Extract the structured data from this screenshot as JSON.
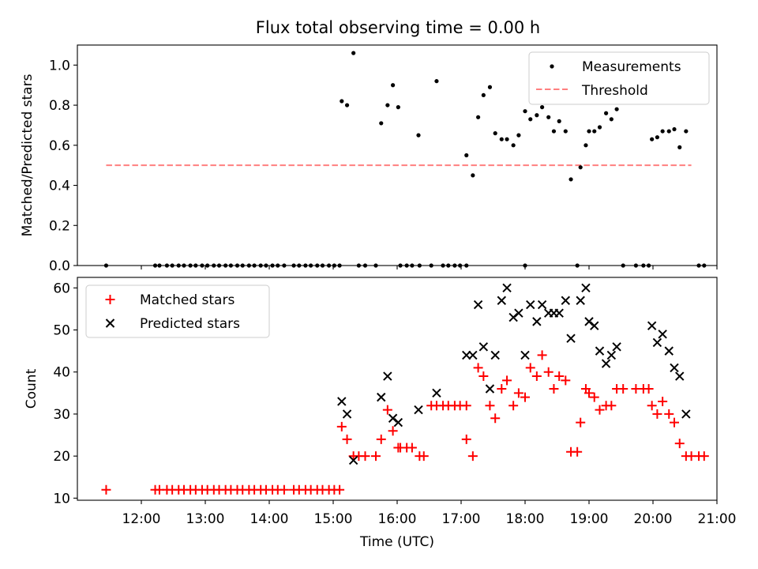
{
  "figure": {
    "title": "Flux total observing time = 0.00 h"
  },
  "chart_data": [
    {
      "type": "scatter",
      "title": "Flux total observing time = 0.00 h",
      "ylabel": "Matched/Predicted stars",
      "xlabel": "",
      "xlim": [
        "11:00",
        "21:00"
      ],
      "ylim": [
        0,
        1.1
      ],
      "yticks": [
        0.0,
        0.2,
        0.4,
        0.6,
        0.8,
        1.0
      ],
      "ytick_labels": [
        "0.0",
        "0.2",
        "0.4",
        "0.6",
        "0.8",
        "1.0"
      ],
      "grid": false,
      "legend": "upper right",
      "series": [
        {
          "name": "Measurements",
          "marker": "dot",
          "color": "#000000",
          "points": [
            [
              "11:27",
              0.0
            ],
            [
              "12:13",
              0.0
            ],
            [
              "12:17",
              0.0
            ],
            [
              "12:24",
              0.0
            ],
            [
              "12:29",
              0.0
            ],
            [
              "12:35",
              0.0
            ],
            [
              "12:40",
              0.0
            ],
            [
              "12:46",
              0.0
            ],
            [
              "12:51",
              0.0
            ],
            [
              "12:57",
              0.0
            ],
            [
              "13:02",
              0.0
            ],
            [
              "13:08",
              0.0
            ],
            [
              "13:13",
              0.0
            ],
            [
              "13:19",
              0.0
            ],
            [
              "13:24",
              0.0
            ],
            [
              "13:30",
              0.0
            ],
            [
              "13:35",
              0.0
            ],
            [
              "13:41",
              0.0
            ],
            [
              "13:46",
              0.0
            ],
            [
              "13:52",
              0.0
            ],
            [
              "13:57",
              0.0
            ],
            [
              "14:03",
              0.0
            ],
            [
              "14:08",
              0.0
            ],
            [
              "14:14",
              0.0
            ],
            [
              "14:23",
              0.0
            ],
            [
              "14:28",
              0.0
            ],
            [
              "14:34",
              0.0
            ],
            [
              "14:39",
              0.0
            ],
            [
              "14:45",
              0.0
            ],
            [
              "14:50",
              0.0
            ],
            [
              "14:56",
              0.0
            ],
            [
              "15:01",
              0.0
            ],
            [
              "15:06",
              0.0
            ],
            [
              "15:08",
              0.82
            ],
            [
              "15:13",
              0.8
            ],
            [
              "15:19",
              1.06
            ],
            [
              "15:24",
              0.0
            ],
            [
              "15:30",
              0.0
            ],
            [
              "15:40",
              0.0
            ],
            [
              "15:45",
              0.71
            ],
            [
              "15:51",
              0.8
            ],
            [
              "15:56",
              0.9
            ],
            [
              "16:01",
              0.79
            ],
            [
              "16:03",
              0.0
            ],
            [
              "16:09",
              0.0
            ],
            [
              "16:14",
              0.0
            ],
            [
              "16:21",
              0.0
            ],
            [
              "16:20",
              0.65
            ],
            [
              "16:32",
              0.0
            ],
            [
              "16:37",
              0.92
            ],
            [
              "16:43",
              0.0
            ],
            [
              "16:48",
              0.0
            ],
            [
              "16:54",
              0.0
            ],
            [
              "16:59",
              0.0
            ],
            [
              "17:05",
              0.0
            ],
            [
              "17:05",
              0.55
            ],
            [
              "17:11",
              0.45
            ],
            [
              "17:16",
              0.74
            ],
            [
              "17:21",
              0.85
            ],
            [
              "17:27",
              0.89
            ],
            [
              "17:32",
              0.66
            ],
            [
              "17:38",
              0.63
            ],
            [
              "17:43",
              0.63
            ],
            [
              "17:49",
              0.6
            ],
            [
              "17:54",
              0.65
            ],
            [
              "18:00",
              0.0
            ],
            [
              "18:00",
              0.77
            ],
            [
              "18:05",
              0.73
            ],
            [
              "18:11",
              0.75
            ],
            [
              "18:16",
              0.79
            ],
            [
              "18:22",
              0.74
            ],
            [
              "18:27",
              0.67
            ],
            [
              "18:32",
              0.72
            ],
            [
              "18:38",
              0.67
            ],
            [
              "18:43",
              0.43
            ],
            [
              "18:49",
              0.0
            ],
            [
              "18:52",
              0.49
            ],
            [
              "18:57",
              0.6
            ],
            [
              "19:00",
              0.67
            ],
            [
              "19:05",
              0.67
            ],
            [
              "19:10",
              0.69
            ],
            [
              "19:16",
              0.76
            ],
            [
              "19:21",
              0.73
            ],
            [
              "19:26",
              0.78
            ],
            [
              "19:32",
              0.0
            ],
            [
              "19:44",
              0.0
            ],
            [
              "19:51",
              0.0
            ],
            [
              "19:56",
              0.0
            ],
            [
              "19:59",
              0.63
            ],
            [
              "20:04",
              0.64
            ],
            [
              "20:09",
              0.67
            ],
            [
              "20:15",
              0.67
            ],
            [
              "20:20",
              0.68
            ],
            [
              "20:25",
              0.59
            ],
            [
              "20:31",
              0.67
            ],
            [
              "20:43",
              0.0
            ],
            [
              "20:48",
              0.0
            ]
          ]
        },
        {
          "name": "Threshold",
          "line": "dashed",
          "color": "#ff7f7f",
          "points": [
            [
              "11:27",
              0.5
            ],
            [
              "20:36",
              0.5
            ]
          ]
        }
      ]
    },
    {
      "type": "scatter",
      "xlabel": "Time (UTC)",
      "ylabel": "Count",
      "xlim": [
        "11:00",
        "21:00"
      ],
      "xticks": [
        "12:00",
        "13:00",
        "14:00",
        "15:00",
        "16:00",
        "17:00",
        "18:00",
        "19:00",
        "20:00",
        "21:00"
      ],
      "ylim": [
        9.5,
        62.5
      ],
      "yticks": [
        10,
        20,
        30,
        40,
        50,
        60
      ],
      "ytick_labels": [
        "10",
        "20",
        "30",
        "40",
        "50",
        "60"
      ],
      "grid": false,
      "legend": "upper left",
      "series": [
        {
          "name": "Matched stars",
          "marker": "plus",
          "color": "#ff0000",
          "points": [
            [
              "11:27",
              12
            ],
            [
              "12:13",
              12
            ],
            [
              "12:17",
              12
            ],
            [
              "12:24",
              12
            ],
            [
              "12:29",
              12
            ],
            [
              "12:35",
              12
            ],
            [
              "12:40",
              12
            ],
            [
              "12:46",
              12
            ],
            [
              "12:51",
              12
            ],
            [
              "12:57",
              12
            ],
            [
              "13:02",
              12
            ],
            [
              "13:08",
              12
            ],
            [
              "13:13",
              12
            ],
            [
              "13:19",
              12
            ],
            [
              "13:24",
              12
            ],
            [
              "13:30",
              12
            ],
            [
              "13:35",
              12
            ],
            [
              "13:41",
              12
            ],
            [
              "13:46",
              12
            ],
            [
              "13:52",
              12
            ],
            [
              "13:57",
              12
            ],
            [
              "14:03",
              12
            ],
            [
              "14:08",
              12
            ],
            [
              "14:14",
              12
            ],
            [
              "14:23",
              12
            ],
            [
              "14:28",
              12
            ],
            [
              "14:34",
              12
            ],
            [
              "14:39",
              12
            ],
            [
              "14:45",
              12
            ],
            [
              "14:50",
              12
            ],
            [
              "14:56",
              12
            ],
            [
              "15:01",
              12
            ],
            [
              "15:06",
              12
            ],
            [
              "15:08",
              27
            ],
            [
              "15:13",
              24
            ],
            [
              "15:19",
              20
            ],
            [
              "15:24",
              20
            ],
            [
              "15:30",
              20
            ],
            [
              "15:40",
              20
            ],
            [
              "15:45",
              24
            ],
            [
              "15:51",
              31
            ],
            [
              "15:56",
              26
            ],
            [
              "16:01",
              22
            ],
            [
              "16:03",
              22
            ],
            [
              "16:09",
              22
            ],
            [
              "16:14",
              22
            ],
            [
              "16:21",
              20
            ],
            [
              "16:25",
              20
            ],
            [
              "16:32",
              32
            ],
            [
              "16:37",
              32
            ],
            [
              "16:43",
              32
            ],
            [
              "16:48",
              32
            ],
            [
              "16:54",
              32
            ],
            [
              "16:59",
              32
            ],
            [
              "17:05",
              32
            ],
            [
              "17:05",
              24
            ],
            [
              "17:11",
              20
            ],
            [
              "17:16",
              41
            ],
            [
              "17:21",
              39
            ],
            [
              "17:27",
              32
            ],
            [
              "17:32",
              29
            ],
            [
              "17:38",
              36
            ],
            [
              "17:43",
              38
            ],
            [
              "17:49",
              32
            ],
            [
              "17:54",
              35
            ],
            [
              "18:00",
              34
            ],
            [
              "18:05",
              41
            ],
            [
              "18:11",
              39
            ],
            [
              "18:16",
              44
            ],
            [
              "18:22",
              40
            ],
            [
              "18:27",
              36
            ],
            [
              "18:32",
              39
            ],
            [
              "18:38",
              38
            ],
            [
              "18:43",
              21
            ],
            [
              "18:49",
              21
            ],
            [
              "18:52",
              28
            ],
            [
              "18:57",
              36
            ],
            [
              "19:00",
              35
            ],
            [
              "19:05",
              34
            ],
            [
              "19:10",
              31
            ],
            [
              "19:16",
              32
            ],
            [
              "19:21",
              32
            ],
            [
              "19:26",
              36
            ],
            [
              "19:32",
              36
            ],
            [
              "19:44",
              36
            ],
            [
              "19:51",
              36
            ],
            [
              "19:56",
              36
            ],
            [
              "19:59",
              32
            ],
            [
              "20:04",
              30
            ],
            [
              "20:09",
              33
            ],
            [
              "20:15",
              30
            ],
            [
              "20:20",
              28
            ],
            [
              "20:25",
              23
            ],
            [
              "20:31",
              20
            ],
            [
              "20:36",
              20
            ],
            [
              "20:43",
              20
            ],
            [
              "20:48",
              20
            ]
          ]
        },
        {
          "name": "Predicted stars",
          "marker": "x",
          "color": "#000000",
          "points": [
            [
              "15:08",
              33
            ],
            [
              "15:13",
              30
            ],
            [
              "15:19",
              19
            ],
            [
              "15:45",
              34
            ],
            [
              "15:51",
              39
            ],
            [
              "15:56",
              29
            ],
            [
              "16:01",
              28
            ],
            [
              "16:20",
              31
            ],
            [
              "16:37",
              35
            ],
            [
              "17:05",
              44
            ],
            [
              "17:11",
              44
            ],
            [
              "17:16",
              56
            ],
            [
              "17:21",
              46
            ],
            [
              "17:27",
              36
            ],
            [
              "17:32",
              44
            ],
            [
              "17:38",
              57
            ],
            [
              "17:43",
              60
            ],
            [
              "17:49",
              53
            ],
            [
              "17:54",
              54
            ],
            [
              "18:00",
              44
            ],
            [
              "18:05",
              56
            ],
            [
              "18:11",
              52
            ],
            [
              "18:16",
              56
            ],
            [
              "18:22",
              54
            ],
            [
              "18:27",
              54
            ],
            [
              "18:32",
              54
            ],
            [
              "18:38",
              57
            ],
            [
              "18:43",
              48
            ],
            [
              "18:52",
              57
            ],
            [
              "18:57",
              60
            ],
            [
              "19:00",
              52
            ],
            [
              "19:05",
              51
            ],
            [
              "19:10",
              45
            ],
            [
              "19:16",
              42
            ],
            [
              "19:21",
              44
            ],
            [
              "19:26",
              46
            ],
            [
              "19:59",
              51
            ],
            [
              "20:04",
              47
            ],
            [
              "20:09",
              49
            ],
            [
              "20:15",
              45
            ],
            [
              "20:20",
              41
            ],
            [
              "20:25",
              39
            ],
            [
              "20:31",
              30
            ]
          ]
        }
      ]
    }
  ]
}
